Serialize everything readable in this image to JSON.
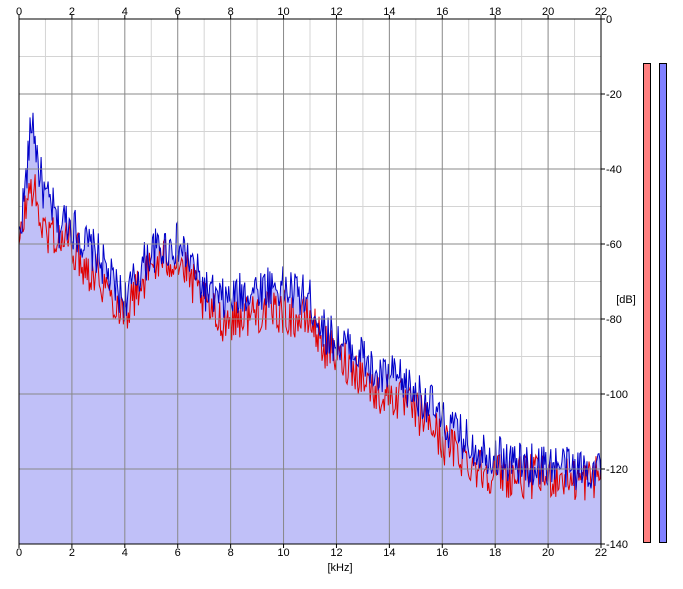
{
  "chart_data": {
    "type": "area",
    "xlabel": "[kHz]",
    "ylabel": "[dB]",
    "xlim": [
      0,
      22
    ],
    "ylim": [
      -140,
      0
    ],
    "x_ticks": [
      "0",
      "2",
      "4",
      "6",
      "8",
      "10",
      "12",
      "14",
      "16",
      "18",
      "20",
      "22"
    ],
    "y_ticks": [
      "0",
      "-20",
      "-40",
      "-60",
      "-80",
      "-100",
      "-120",
      "-140"
    ],
    "grid": true,
    "colors": {
      "fill": "#c0c0f8",
      "series_blue": "#0000c8",
      "series_red": "#e00000",
      "grid_major": "#888888",
      "grid_minor": "#d4d4d4",
      "meter_left": "#ff8080",
      "meter_right": "#8080ff"
    },
    "series": [
      {
        "color": "#0000c8",
        "x": [
          0.0,
          0.25,
          0.5,
          0.75,
          1.0,
          1.25,
          1.5,
          1.75,
          2.0,
          2.5,
          3.0,
          3.5,
          4.0,
          4.5,
          5.0,
          5.5,
          6.0,
          6.5,
          7.0,
          7.5,
          8.0,
          8.5,
          9.0,
          9.5,
          10.0,
          10.5,
          11.0,
          11.5,
          12.0,
          12.5,
          13.0,
          13.5,
          14.0,
          14.5,
          15.0,
          15.5,
          16.0,
          16.5,
          17.0,
          17.5,
          18.0,
          18.5,
          19.0,
          19.5,
          20.0,
          20.5,
          21.0,
          21.5,
          22.0
        ],
        "values": [
          -58,
          -44,
          -26,
          -40,
          -48,
          -50,
          -56,
          -53,
          -55,
          -60,
          -63,
          -70,
          -75,
          -68,
          -62,
          -61,
          -60,
          -65,
          -72,
          -75,
          -75,
          -73,
          -72,
          -71,
          -72,
          -73,
          -75,
          -83,
          -86,
          -88,
          -90,
          -96,
          -95,
          -97,
          -100,
          -102,
          -108,
          -110,
          -113,
          -115,
          -116,
          -118,
          -119,
          -119,
          -119,
          -119,
          -120,
          -120,
          -119
        ]
      },
      {
        "color": "#e00000",
        "x": [
          0.0,
          0.25,
          0.5,
          0.75,
          1.0,
          1.25,
          1.5,
          1.75,
          2.0,
          2.5,
          3.0,
          3.5,
          4.0,
          4.5,
          5.0,
          5.5,
          6.0,
          6.5,
          7.0,
          7.5,
          8.0,
          8.5,
          9.0,
          9.5,
          10.0,
          10.5,
          11.0,
          11.5,
          12.0,
          12.5,
          13.0,
          13.5,
          14.0,
          14.5,
          15.0,
          15.5,
          16.0,
          16.5,
          17.0,
          17.5,
          18.0,
          18.5,
          19.0,
          19.5,
          20.0,
          20.5,
          21.0,
          21.5,
          22.0
        ],
        "values": [
          -62,
          -50,
          -44,
          -52,
          -58,
          -56,
          -60,
          -58,
          -60,
          -66,
          -68,
          -74,
          -78,
          -72,
          -66,
          -64,
          -64,
          -70,
          -76,
          -80,
          -80,
          -79,
          -78,
          -78,
          -78,
          -80,
          -80,
          -87,
          -90,
          -92,
          -95,
          -100,
          -100,
          -102,
          -105,
          -107,
          -113,
          -115,
          -118,
          -120,
          -121,
          -122,
          -122,
          -122,
          -122,
          -122,
          -123,
          -123,
          -121
        ]
      }
    ]
  }
}
